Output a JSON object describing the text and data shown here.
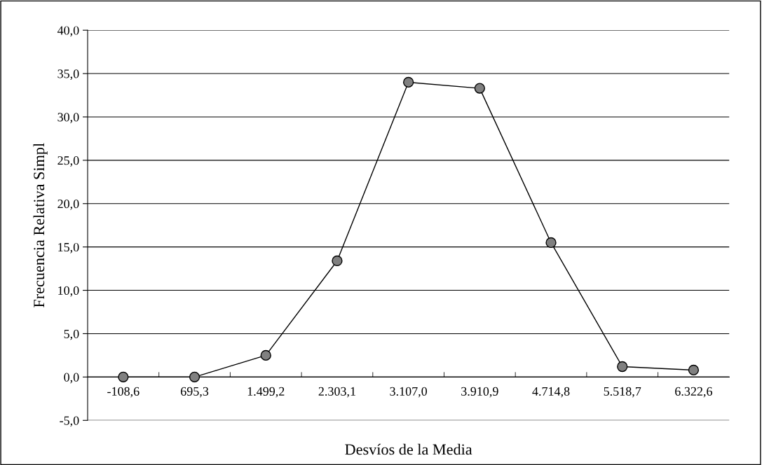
{
  "chart_data": {
    "type": "line",
    "xlabel": "Desvíos de la Media",
    "ylabel": "Frecuencia Relativa Simpl",
    "categories": [
      "-108,6",
      "695,3",
      "1.499,2",
      "2.303,1",
      "3.107,0",
      "3.910,9",
      "4.714,8",
      "5.518,7",
      "6.322,6"
    ],
    "series": [
      {
        "color": "#808080",
        "values": [
          0.0,
          0.0,
          2.5,
          13.4,
          34.0,
          33.3,
          15.5,
          1.2,
          0.8
        ]
      }
    ],
    "ylim": [
      -5,
      40
    ],
    "yticks": [
      {
        "value": -5,
        "label": "-5,0"
      },
      {
        "value": 0,
        "label": "0,0"
      },
      {
        "value": 5,
        "label": "5,0"
      },
      {
        "value": 10,
        "label": "10,0"
      },
      {
        "value": 15,
        "label": "15,0"
      },
      {
        "value": 20,
        "label": "20,0"
      },
      {
        "value": 25,
        "label": "25,0"
      },
      {
        "value": 30,
        "label": "30,0"
      },
      {
        "value": 35,
        "label": "35,0"
      },
      {
        "value": 40,
        "label": "40,0"
      }
    ],
    "grid": "y",
    "marker": "circle",
    "line_style": "solid"
  }
}
